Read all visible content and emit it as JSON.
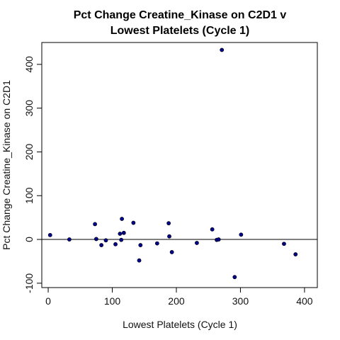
{
  "chart_data": {
    "type": "scatter",
    "title": [
      "Pct Change Creatine_Kinase on C2D1 v",
      "Lowest Platelets (Cycle 1)"
    ],
    "xlabel": "Lowest Platelets (Cycle 1)",
    "ylabel": "Pct Change Creatine_Kinase on C2D1",
    "xlim": [
      -10,
      420
    ],
    "ylim": [
      -110,
      450
    ],
    "xticks": [
      0,
      100,
      200,
      300,
      400
    ],
    "yticks": [
      -100,
      0,
      100,
      200,
      300,
      400
    ],
    "reference_line_y": 0,
    "grid": false,
    "point_color": "#00008B",
    "points": [
      [
        3,
        10
      ],
      [
        33,
        0
      ],
      [
        73,
        35
      ],
      [
        75,
        1
      ],
      [
        83,
        -13
      ],
      [
        90,
        -2
      ],
      [
        105,
        -11
      ],
      [
        112,
        13
      ],
      [
        114,
        -1
      ],
      [
        115,
        47
      ],
      [
        118,
        15
      ],
      [
        133,
        38
      ],
      [
        142,
        -48
      ],
      [
        144,
        -13
      ],
      [
        170,
        -9
      ],
      [
        188,
        37
      ],
      [
        189,
        7
      ],
      [
        193,
        -29
      ],
      [
        232,
        -8
      ],
      [
        256,
        23
      ],
      [
        263,
        -1
      ],
      [
        266,
        0
      ],
      [
        271,
        433
      ],
      [
        291,
        -86
      ],
      [
        301,
        11
      ],
      [
        368,
        -10
      ],
      [
        386,
        -34
      ]
    ]
  }
}
